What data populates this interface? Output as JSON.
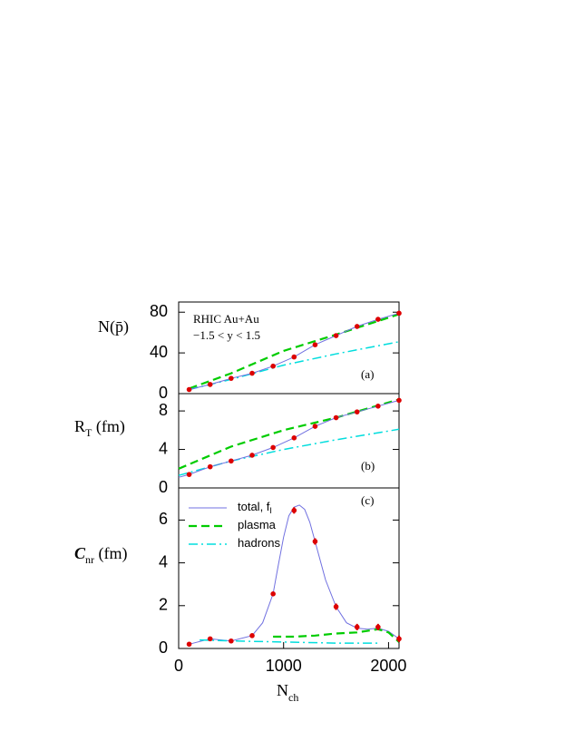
{
  "chart_data": [
    {
      "type": "line",
      "y_label": "N(p̄)",
      "panel_label": "(a)",
      "annotations": [
        "RHIC Au+Au",
        "−1.5 < y < 1.5"
      ],
      "xlim": [
        0,
        2100
      ],
      "ylim": [
        0,
        90
      ],
      "yticks": [
        0,
        40,
        80
      ],
      "series": [
        {
          "color": "#00cc00",
          "style": "dashed",
          "x": [
            100,
            500,
            1000,
            1500,
            2100
          ],
          "values": [
            5,
            20,
            42,
            58,
            78
          ]
        },
        {
          "color": "#00dddd",
          "style": "dashdot",
          "x": [
            100,
            500,
            1000,
            1500,
            2100
          ],
          "values": [
            4,
            14,
            28,
            39,
            51
          ]
        },
        {
          "color": "#7070e0",
          "style": "solid",
          "x": [
            100,
            300,
            500,
            700,
            900,
            1100,
            1300,
            1500,
            1700,
            1900,
            2100
          ],
          "values": [
            4,
            9,
            15,
            20,
            27,
            36,
            48,
            57,
            66,
            73,
            79
          ]
        },
        {
          "color": "#dd0000",
          "style": "points",
          "x": [
            100,
            300,
            500,
            700,
            900,
            1100,
            1300,
            1500,
            1700,
            1900,
            2100
          ],
          "values": [
            4,
            9,
            15,
            20,
            27,
            36,
            48,
            57,
            66,
            73,
            79
          ]
        }
      ]
    },
    {
      "type": "line",
      "y_label": "R",
      "y_label_sub": "T",
      "y_label_unit": " (fm)",
      "panel_label": "(b)",
      "xlim": [
        0,
        2100
      ],
      "ylim": [
        0,
        9.8
      ],
      "yticks": [
        0,
        4,
        8
      ],
      "series": [
        {
          "color": "#00cc00",
          "style": "dashed",
          "x": [
            0,
            500,
            1000,
            1500,
            2100
          ],
          "values": [
            2,
            4.3,
            6,
            7.3,
            9.2
          ]
        },
        {
          "color": "#00dddd",
          "style": "dashdot",
          "x": [
            0,
            500,
            1000,
            1500,
            2100
          ],
          "values": [
            1.3,
            2.8,
            4,
            5,
            6.1
          ]
        },
        {
          "color": "#7070e0",
          "style": "solid",
          "x": [
            0,
            100,
            300,
            500,
            700,
            900,
            1100,
            1300,
            1500,
            1700,
            1900,
            2100
          ],
          "values": [
            1.1,
            1.4,
            2.2,
            2.8,
            3.4,
            4.2,
            5.2,
            6.4,
            7.3,
            7.9,
            8.5,
            9.1
          ]
        },
        {
          "color": "#dd0000",
          "style": "points",
          "x": [
            100,
            300,
            500,
            700,
            900,
            1100,
            1300,
            1500,
            1700,
            1900,
            2100
          ],
          "values": [
            1.4,
            2.2,
            2.8,
            3.4,
            4.2,
            5.2,
            6.4,
            7.3,
            7.9,
            8.5,
            9.1
          ]
        }
      ]
    },
    {
      "type": "line",
      "y_label": "C",
      "y_label_sub": "nr",
      "y_label_unit": " (fm)",
      "panel_label": "(c)",
      "x_label": "N",
      "x_label_sub": "ch",
      "xlim": [
        0,
        2100
      ],
      "ylim": [
        0,
        7.5
      ],
      "yticks": [
        0,
        2,
        4,
        6
      ],
      "xticks": [
        0,
        1000,
        2000
      ],
      "series": [
        {
          "name": "total, f",
          "name_sub": "I",
          "color": "#7070e0",
          "style": "solid",
          "x": [
            100,
            300,
            500,
            700,
            800,
            900,
            950,
            1000,
            1050,
            1100,
            1150,
            1200,
            1250,
            1300,
            1400,
            1500,
            1600,
            1700,
            1800,
            1900,
            2000,
            2100
          ],
          "values": [
            0.2,
            0.45,
            0.35,
            0.6,
            1.2,
            2.55,
            3.9,
            5.2,
            6.2,
            6.6,
            6.7,
            6.5,
            5.9,
            5.0,
            3.2,
            1.95,
            1.2,
            0.95,
            0.9,
            0.95,
            0.8,
            0.45
          ]
        },
        {
          "name": "plasma",
          "color": "#00cc00",
          "style": "dashed",
          "x": [
            900,
            1100,
            1300,
            1500,
            1700,
            1900,
            2000,
            2100
          ],
          "values": [
            0.55,
            0.55,
            0.6,
            0.7,
            0.75,
            0.9,
            0.75,
            0.3
          ]
        },
        {
          "name": "hadrons",
          "color": "#00dddd",
          "style": "dashdot",
          "x": [
            200,
            500,
            1000,
            1500,
            1900
          ],
          "values": [
            0.4,
            0.35,
            0.3,
            0.25,
            0.25
          ]
        },
        {
          "color": "#dd0000",
          "style": "points",
          "x": [
            100,
            300,
            500,
            700,
            900,
            1100,
            1300,
            1500,
            1700,
            1900,
            2100
          ],
          "values": [
            0.2,
            0.45,
            0.35,
            0.6,
            2.55,
            6.45,
            5.0,
            1.95,
            1.0,
            1.0,
            0.45
          ],
          "errors": [
            0.05,
            0.05,
            0.05,
            0.05,
            0.08,
            0.15,
            0.15,
            0.15,
            0.15,
            0.15,
            0.15
          ]
        }
      ]
    }
  ]
}
